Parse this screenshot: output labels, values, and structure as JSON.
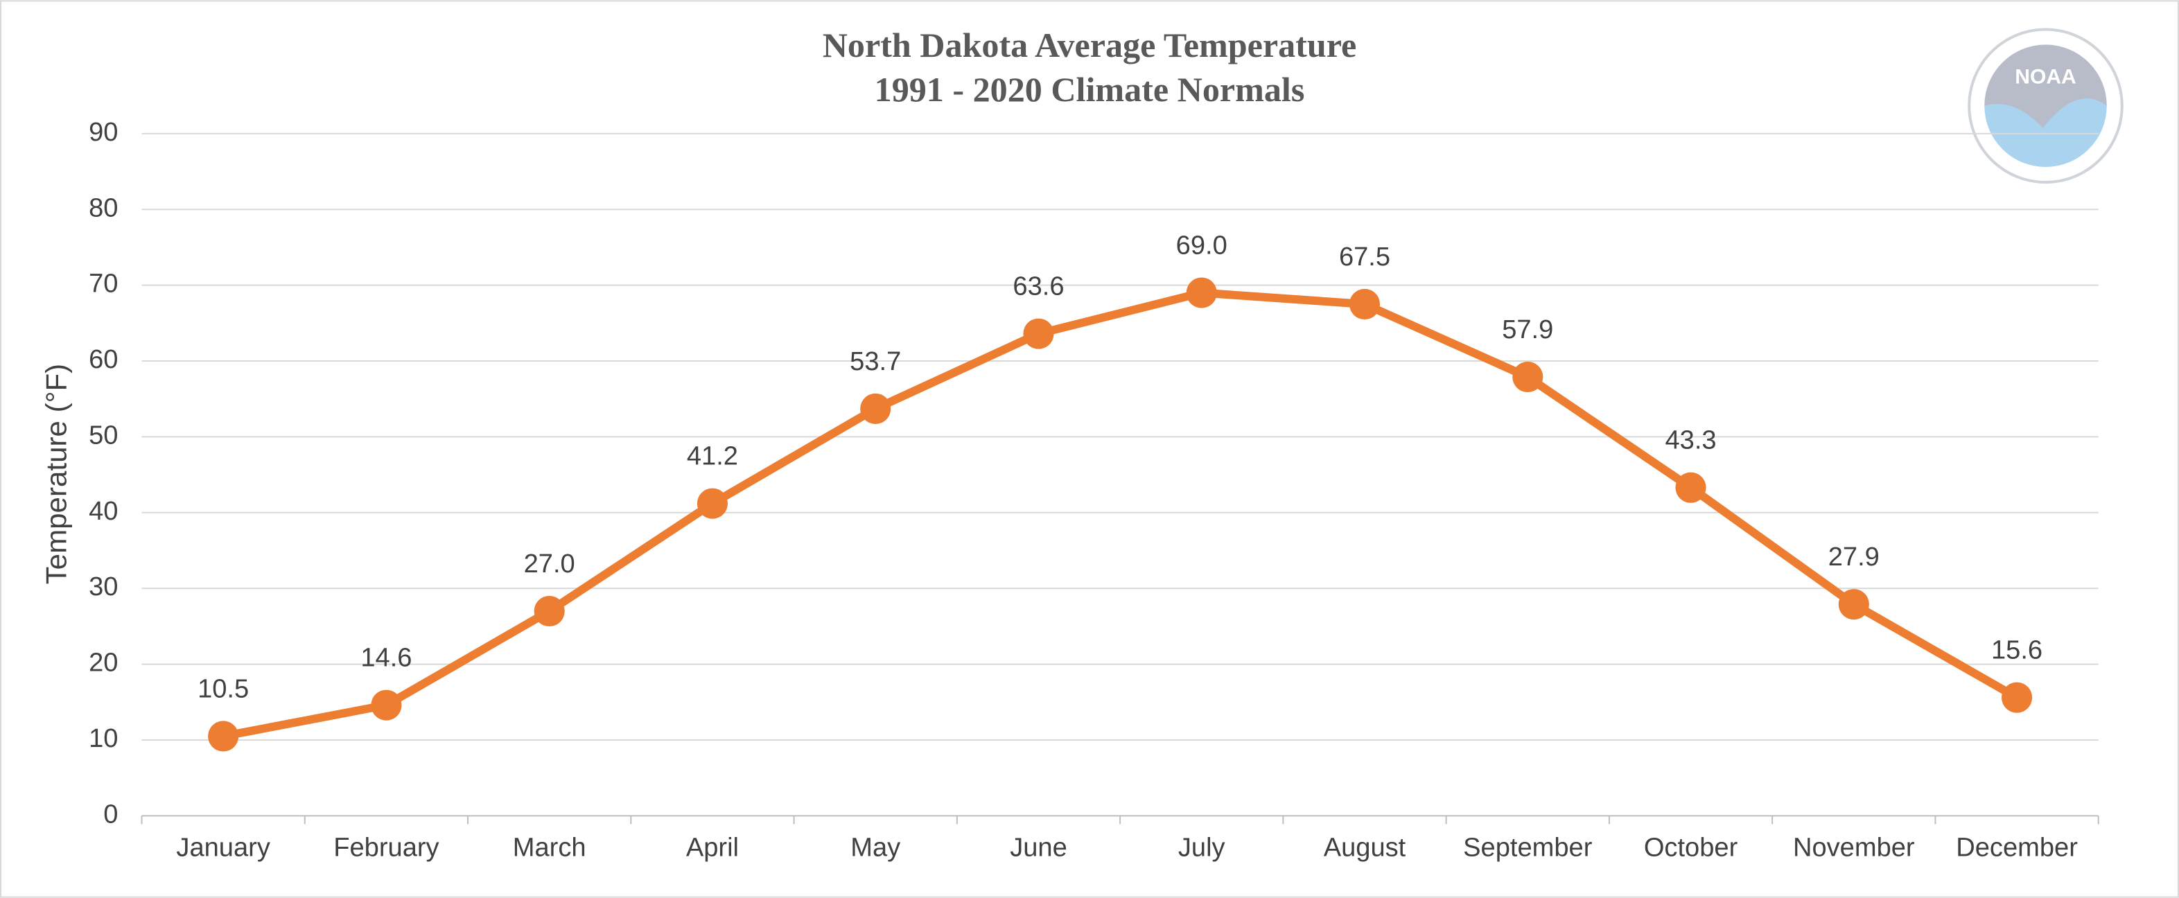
{
  "chart_data": {
    "type": "line",
    "title": "North Dakota Average Temperature",
    "subtitle": "1991 - 2020 Climate Normals",
    "y_label": "Temperature (°F)",
    "logo": "NOAA",
    "categories": [
      "January",
      "February",
      "March",
      "April",
      "May",
      "June",
      "July",
      "August",
      "September",
      "October",
      "November",
      "December"
    ],
    "values": [
      10.5,
      14.6,
      27.0,
      41.2,
      53.7,
      63.6,
      69.0,
      67.5,
      57.9,
      43.3,
      27.9,
      15.6
    ],
    "value_labels": [
      "10.5",
      "14.6",
      "27.0",
      "41.2",
      "53.7",
      "63.6",
      "69.0",
      "67.5",
      "57.9",
      "43.3",
      "27.9",
      "15.6"
    ],
    "color": "#ed7d31",
    "ylim": [
      0,
      90
    ],
    "yticks": [
      0,
      10,
      20,
      30,
      40,
      50,
      60,
      70,
      80,
      90
    ],
    "grid": true
  }
}
